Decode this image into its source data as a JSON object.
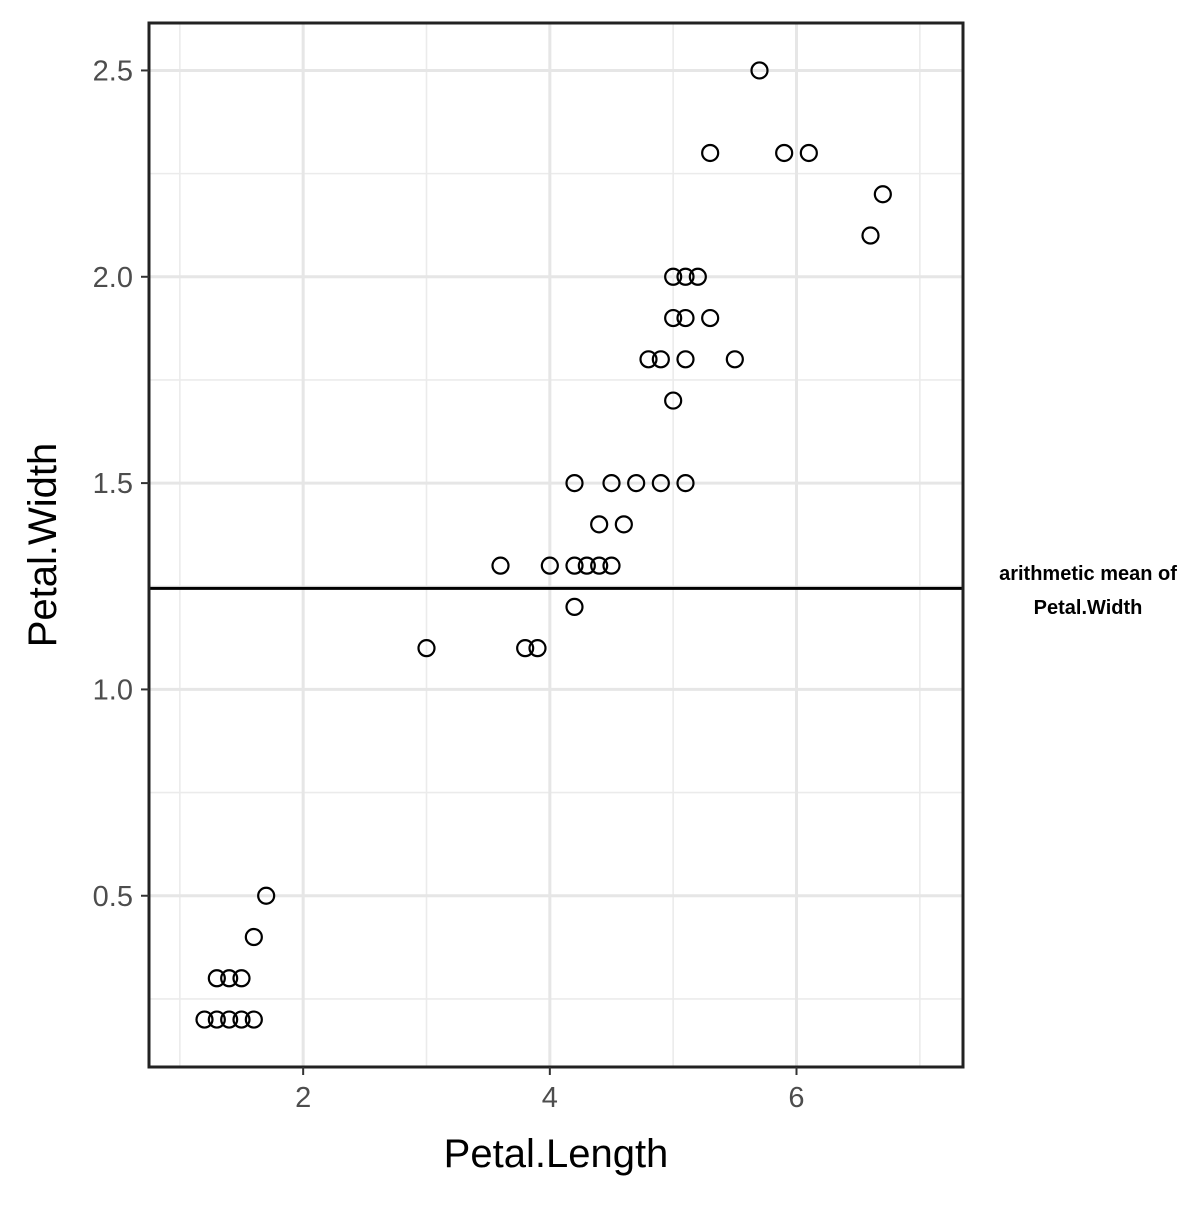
{
  "chart_data": {
    "type": "scatter",
    "xlabel": "Petal.Length",
    "ylabel": "Petal.Width",
    "xlim": [
      0.75,
      7.35
    ],
    "ylim": [
      0.085,
      2.615
    ],
    "x_ticks": [
      2,
      4,
      6
    ],
    "x_tick_labels": [
      "2",
      "4",
      "6"
    ],
    "x_minor_ticks": [
      1,
      3,
      5,
      7
    ],
    "y_ticks": [
      0.5,
      1.0,
      1.5,
      2.0,
      2.5
    ],
    "y_tick_labels": [
      "0.5",
      "1.0",
      "1.5",
      "2.0",
      "2.5"
    ],
    "y_minor_ticks": [
      0.25,
      0.75,
      1.25,
      1.75,
      2.25
    ],
    "grid": true,
    "series": [
      {
        "points": [
          {
            "x": 1.2,
            "y": 0.2
          },
          {
            "x": 1.3,
            "y": 0.2
          },
          {
            "x": 1.4,
            "y": 0.2
          },
          {
            "x": 1.5,
            "y": 0.2
          },
          {
            "x": 1.6,
            "y": 0.2
          },
          {
            "x": 1.3,
            "y": 0.3
          },
          {
            "x": 1.4,
            "y": 0.3
          },
          {
            "x": 1.5,
            "y": 0.3
          },
          {
            "x": 1.6,
            "y": 0.4
          },
          {
            "x": 1.7,
            "y": 0.5
          },
          {
            "x": 3.0,
            "y": 1.1
          },
          {
            "x": 3.8,
            "y": 1.1
          },
          {
            "x": 3.9,
            "y": 1.1
          },
          {
            "x": 4.2,
            "y": 1.2
          },
          {
            "x": 3.6,
            "y": 1.3
          },
          {
            "x": 4.0,
            "y": 1.3
          },
          {
            "x": 4.2,
            "y": 1.3
          },
          {
            "x": 4.3,
            "y": 1.3
          },
          {
            "x": 4.4,
            "y": 1.3
          },
          {
            "x": 4.5,
            "y": 1.3
          },
          {
            "x": 4.4,
            "y": 1.4
          },
          {
            "x": 4.6,
            "y": 1.4
          },
          {
            "x": 4.2,
            "y": 1.5
          },
          {
            "x": 4.5,
            "y": 1.5
          },
          {
            "x": 4.7,
            "y": 1.5
          },
          {
            "x": 4.9,
            "y": 1.5
          },
          {
            "x": 5.1,
            "y": 1.5
          },
          {
            "x": 5.0,
            "y": 1.7
          },
          {
            "x": 4.8,
            "y": 1.8
          },
          {
            "x": 4.9,
            "y": 1.8
          },
          {
            "x": 5.1,
            "y": 1.8
          },
          {
            "x": 5.5,
            "y": 1.8
          },
          {
            "x": 5.0,
            "y": 1.9
          },
          {
            "x": 5.1,
            "y": 1.9
          },
          {
            "x": 5.3,
            "y": 1.9
          },
          {
            "x": 5.0,
            "y": 2.0
          },
          {
            "x": 5.1,
            "y": 2.0
          },
          {
            "x": 5.2,
            "y": 2.0
          },
          {
            "x": 6.6,
            "y": 2.1
          },
          {
            "x": 6.7,
            "y": 2.2
          },
          {
            "x": 5.3,
            "y": 2.3
          },
          {
            "x": 5.9,
            "y": 2.3
          },
          {
            "x": 6.1,
            "y": 2.3
          },
          {
            "x": 5.7,
            "y": 2.5
          }
        ]
      }
    ],
    "reference_line": {
      "y": 1.245,
      "label_lines": [
        "arithmetic mean of",
        "Petal.Width"
      ]
    }
  }
}
